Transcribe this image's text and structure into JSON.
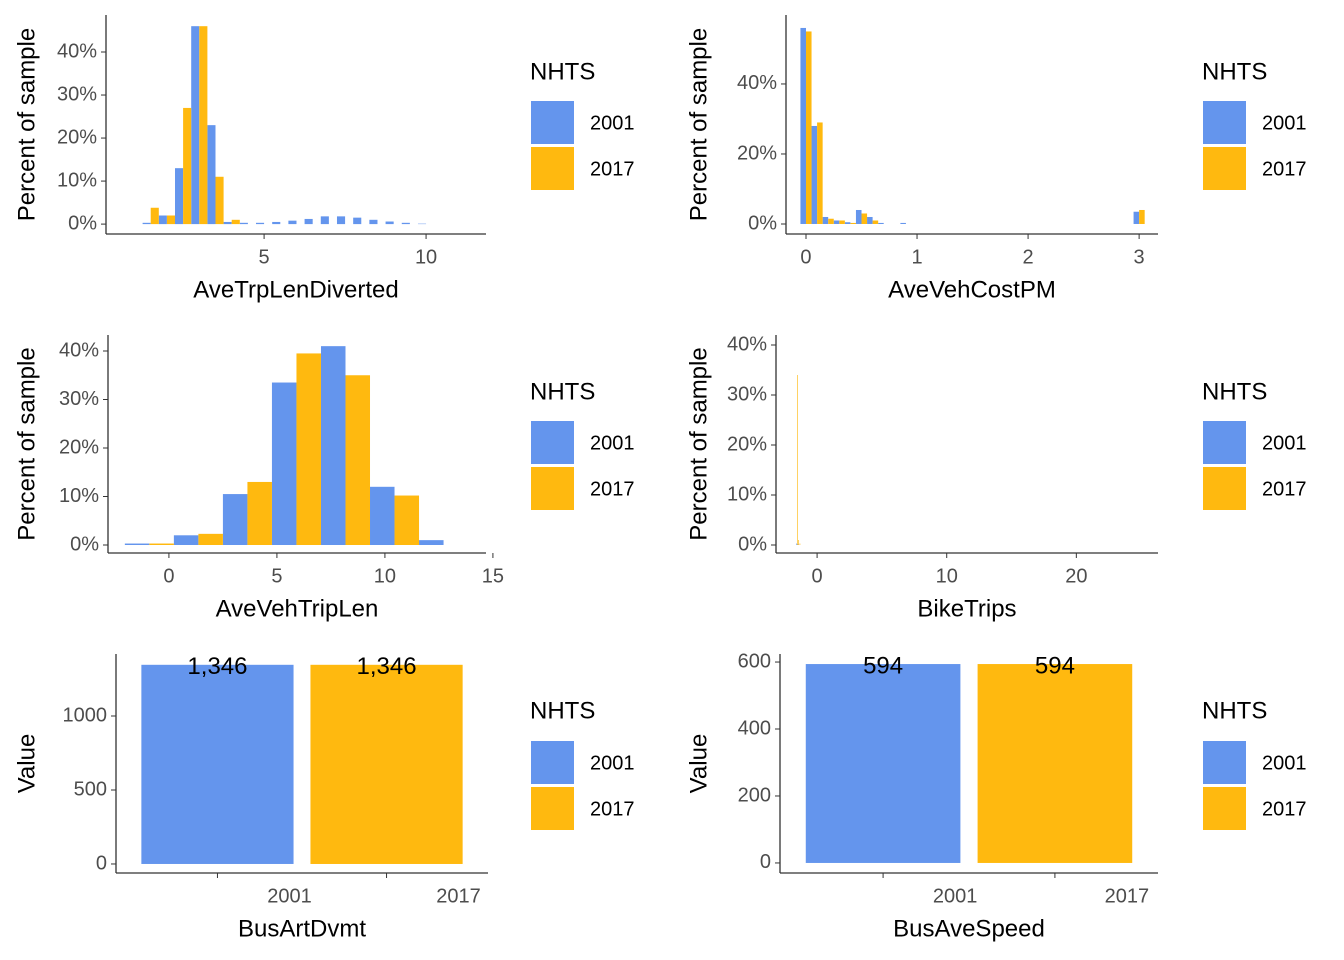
{
  "chart_data": [
    {
      "type": "histogram",
      "x_label": "AveTrpLenDiverted",
      "y_label": "Percent of sample",
      "legend_title": "NHTS",
      "bins": [
        1.25,
        1.75,
        2.25,
        2.75,
        3.25,
        3.75,
        4.25,
        4.75,
        5.25,
        5.75,
        6.25,
        6.75,
        7.25,
        7.75,
        8.25,
        8.75,
        9.25,
        9.75,
        10.25
      ],
      "series": [
        {
          "name": "2001",
          "color": "#6495ed",
          "values": [
            0.3,
            2,
            13,
            46,
            23,
            0.5,
            0.3,
            0.3,
            0.5,
            0.8,
            1.2,
            1.8,
            1.8,
            1.5,
            1,
            0.6,
            0.3,
            0.1
          ]
        },
        {
          "name": "2017",
          "color": "#ffb90f",
          "values": [
            3.8,
            2,
            27,
            46,
            11,
            1,
            0,
            0,
            0,
            0,
            0,
            0,
            0,
            0,
            0,
            0,
            0,
            0
          ]
        }
      ],
      "xlim": [
        0.12,
        11.85
      ],
      "xticks": [
        5,
        10
      ],
      "ylim": [
        -2.3,
        48.6
      ],
      "yticks": [
        {
          "value": 0,
          "label": "0%"
        },
        {
          "value": 10,
          "label": "10%"
        },
        {
          "value": 20,
          "label": "20%"
        },
        {
          "value": 30,
          "label": "30%"
        },
        {
          "value": 40,
          "label": "40%"
        }
      ]
    },
    {
      "type": "histogram",
      "x_label": "AveVehCostPM",
      "y_label": "Percent of sample",
      "legend_title": "NHTS",
      "bins": [
        -0.05,
        0.05,
        0.15,
        0.25,
        0.35,
        0.45,
        0.55,
        0.65,
        0.75,
        0.85,
        0.95,
        1.05,
        1.15,
        1.25,
        1.35,
        1.45,
        1.55,
        1.65,
        1.75,
        1.85,
        1.95,
        2.05,
        2.15,
        2.25,
        2.35,
        2.45,
        2.55,
        2.65,
        2.75,
        2.85,
        2.95,
        3.05
      ],
      "series": [
        {
          "name": "2001",
          "color": "#6495ed",
          "values": [
            56,
            28,
            2,
            1,
            0.5,
            4,
            2,
            0.3,
            0,
            0.3,
            0,
            0,
            0,
            0,
            0,
            0,
            0,
            0,
            0,
            0,
            0,
            0,
            0,
            0,
            0,
            0,
            0,
            0,
            0,
            0,
            3.5
          ]
        },
        {
          "name": "2017",
          "color": "#ffb90f",
          "values": [
            55,
            29,
            1.5,
            1,
            0.3,
            3,
            1,
            0,
            0,
            0,
            0,
            0,
            0,
            0,
            0,
            0,
            0,
            0,
            0,
            0,
            0,
            0,
            0,
            0,
            0,
            0,
            0,
            0,
            0,
            0,
            4
          ]
        }
      ],
      "xlim": [
        -0.18,
        3.17
      ],
      "xticks": [
        0,
        1,
        2,
        3
      ],
      "ylim": [
        -2.86,
        59.7
      ],
      "yticks": [
        {
          "value": 0,
          "label": "0%"
        },
        {
          "value": 20,
          "label": "20%"
        },
        {
          "value": 40,
          "label": "40%"
        }
      ]
    },
    {
      "type": "histogram",
      "x_label": "AveVehTripLen",
      "y_label": "Percent of sample",
      "legend_title": "NHTS",
      "bins": [
        -2.04,
        0.23,
        2.5,
        4.77,
        7.04,
        9.31,
        11.58,
        13.85
      ],
      "series": [
        {
          "name": "2001",
          "color": "#6495ed",
          "values": [
            0.3,
            2,
            10.5,
            33.5,
            41,
            12,
            1
          ]
        },
        {
          "name": "2017",
          "color": "#ffb90f",
          "values": [
            0.3,
            2.3,
            13,
            39.5,
            35,
            10.2,
            0
          ]
        }
      ],
      "xlim": [
        -2.82,
        14.68
      ],
      "xticks": [
        0,
        5,
        10,
        15
      ],
      "ylim": [
        -1.65,
        43.3
      ],
      "yticks": [
        {
          "value": 0,
          "label": "0%"
        },
        {
          "value": 10,
          "label": "10%"
        },
        {
          "value": 20,
          "label": "20%"
        },
        {
          "value": 30,
          "label": "30%"
        },
        {
          "value": 40,
          "label": "40%"
        }
      ]
    },
    {
      "type": "histogram",
      "x_label": "BikeTrips",
      "y_label": "Percent of sample",
      "legend_title": "NHTS",
      "bins": [
        -1.6,
        -1.5,
        -1.4,
        -1.3
      ],
      "series": [
        {
          "name": "2001",
          "color": "#6495ed",
          "values": [
            0.3,
            0.2,
            0
          ]
        },
        {
          "name": "2017",
          "color": "#ffb90f",
          "values": [
            34,
            1,
            0.3
          ]
        }
      ],
      "xlim": [
        -3.17,
        26.3
      ],
      "xticks": [
        0,
        10,
        20
      ],
      "ylim": [
        -1.6,
        42
      ],
      "yticks": [
        {
          "value": 0,
          "label": "0%"
        },
        {
          "value": 10,
          "label": "10%"
        },
        {
          "value": 20,
          "label": "20%"
        },
        {
          "value": 30,
          "label": "30%"
        },
        {
          "value": 40,
          "label": "40%"
        }
      ]
    },
    {
      "type": "bar",
      "x_label": "BusArtDvmt",
      "y_label": "Value",
      "legend_title": "NHTS",
      "categories": [
        "2001",
        "2017"
      ],
      "values": [
        1346,
        1346
      ],
      "value_labels": [
        "1,346",
        "1,346"
      ],
      "colors": [
        "#6495ed",
        "#ffb90f"
      ],
      "ylim": [
        -61,
        1419
      ],
      "yticks": [
        0,
        500,
        1000
      ]
    },
    {
      "type": "bar",
      "x_label": "BusAveSpeed",
      "y_label": "Value",
      "legend_title": "NHTS",
      "categories": [
        "2001",
        "2017"
      ],
      "values": [
        594,
        594
      ],
      "colors": [
        "#6495ed",
        "#ffb90f"
      ],
      "ylim": [
        -30,
        624
      ],
      "yticks": [
        0,
        200,
        400,
        600
      ]
    }
  ]
}
